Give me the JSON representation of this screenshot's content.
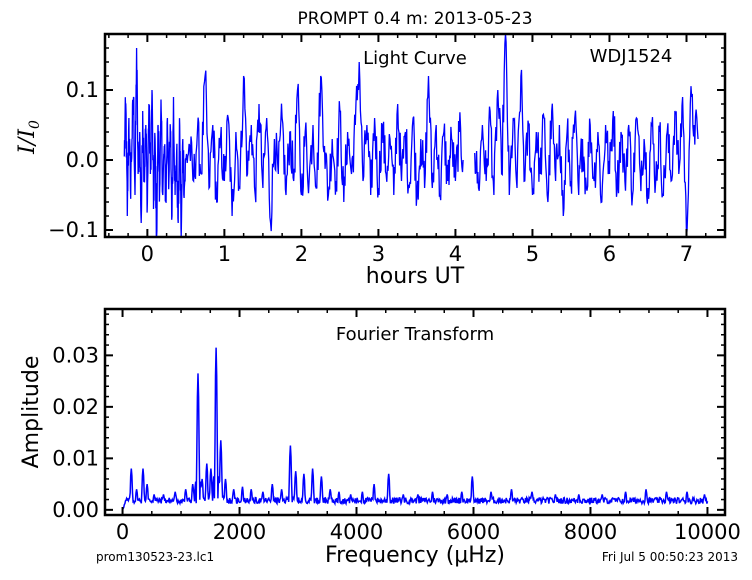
{
  "page": {
    "title": "PROMPT 0.4 m:  2013-05-23",
    "footer_left": "prom130523-23.lc1",
    "footer_right": "Fri Jul  5 00:50:23 2013"
  },
  "chart_data": [
    {
      "type": "line",
      "annotation": "Light Curve",
      "object_label": "WDJ1524",
      "xlabel": "hours UT",
      "ylabel_main": "I",
      "ylabel_den": "I",
      "ylabel_sub": "0",
      "xlim": [
        -0.55,
        7.5
      ],
      "ylim": [
        -0.11,
        0.18
      ],
      "xticks": [
        0,
        1,
        2,
        3,
        4,
        5,
        6,
        7
      ],
      "xtick_labels": [
        "0",
        "1",
        "2",
        "3",
        "4",
        "5",
        "6",
        "7"
      ],
      "yticks": [
        -0.1,
        0.0,
        0.1
      ],
      "ytick_labels": [
        "−0.1",
        "0.0",
        "0.1"
      ],
      "color": "#0000ff",
      "segments": [
        {
          "x_start": -0.3,
          "x_end": 4.1
        },
        {
          "x_start": 4.25,
          "x_end": 7.15
        }
      ],
      "series": [
        {
          "points": [
            [
              -0.3,
              0.005
            ],
            [
              -0.28,
              0.08
            ],
            [
              -0.26,
              -0.08
            ],
            [
              -0.24,
              0.06
            ],
            [
              -0.22,
              -0.04
            ],
            [
              -0.2,
              0.03
            ],
            [
              -0.18,
              0.09
            ],
            [
              -0.16,
              -0.05
            ],
            [
              -0.14,
              0.16
            ],
            [
              -0.12,
              -0.02
            ],
            [
              -0.1,
              0.04
            ],
            [
              -0.08,
              -0.09
            ],
            [
              -0.06,
              0.07
            ],
            [
              -0.04,
              -0.03
            ],
            [
              -0.02,
              0.05
            ],
            [
              0.0,
              -0.06
            ],
            [
              0.02,
              0.08
            ],
            [
              0.04,
              -0.02
            ],
            [
              0.06,
              0.1
            ],
            [
              0.08,
              -0.07
            ],
            [
              0.1,
              0.03
            ],
            [
              0.12,
              -0.11
            ],
            [
              0.14,
              0.05
            ],
            [
              0.16,
              -0.04
            ],
            [
              0.18,
              0.07
            ],
            [
              0.2,
              -0.05
            ],
            [
              0.22,
              0.02
            ],
            [
              0.24,
              -0.06
            ],
            [
              0.26,
              0.06
            ],
            [
              0.28,
              -0.03
            ],
            [
              0.3,
              0.04
            ],
            [
              0.32,
              -0.08
            ],
            [
              0.34,
              0.09
            ],
            [
              0.36,
              -0.05
            ],
            [
              0.38,
              0.01
            ],
            [
              0.4,
              -0.09
            ],
            [
              0.42,
              0.05
            ],
            [
              0.44,
              -0.11
            ],
            [
              0.46,
              0.03
            ],
            [
              0.48,
              -0.04
            ],
            [
              0.5,
              0.0
            ],
            [
              0.55,
              0.02
            ],
            [
              0.6,
              -0.03
            ],
            [
              0.65,
              0.04
            ],
            [
              0.7,
              -0.02
            ],
            [
              0.75,
              0.12
            ],
            [
              0.8,
              -0.04
            ],
            [
              0.85,
              0.05
            ],
            [
              0.9,
              -0.06
            ],
            [
              0.95,
              0.03
            ],
            [
              1.0,
              -0.03
            ],
            [
              1.05,
              0.06
            ],
            [
              1.1,
              -0.08
            ],
            [
              1.15,
              0.04
            ],
            [
              1.2,
              -0.04
            ],
            [
              1.25,
              0.12
            ],
            [
              1.3,
              -0.02
            ],
            [
              1.35,
              0.05
            ],
            [
              1.4,
              -0.05
            ],
            [
              1.45,
              0.08
            ],
            [
              1.5,
              -0.04
            ],
            [
              1.55,
              0.06
            ],
            [
              1.6,
              -0.09
            ],
            [
              1.65,
              0.03
            ],
            [
              1.7,
              -0.02
            ],
            [
              1.75,
              0.06
            ],
            [
              1.8,
              -0.05
            ],
            [
              1.85,
              0.04
            ],
            [
              1.9,
              -0.03
            ],
            [
              1.95,
              0.1
            ],
            [
              2.0,
              -0.05
            ],
            [
              2.05,
              0.04
            ],
            [
              2.1,
              -0.03
            ],
            [
              2.15,
              0.05
            ],
            [
              2.2,
              -0.04
            ],
            [
              2.25,
              0.12
            ],
            [
              2.3,
              0.02
            ],
            [
              2.35,
              -0.05
            ],
            [
              2.4,
              0.03
            ],
            [
              2.45,
              -0.03
            ],
            [
              2.5,
              0.07
            ],
            [
              2.55,
              -0.06
            ],
            [
              2.6,
              0.04
            ],
            [
              2.65,
              -0.02
            ],
            [
              2.7,
              0.05
            ],
            [
              2.75,
              0.14
            ],
            [
              2.8,
              -0.03
            ],
            [
              2.85,
              0.05
            ],
            [
              2.9,
              -0.05
            ],
            [
              2.95,
              0.06
            ],
            [
              3.0,
              -0.04
            ],
            [
              3.05,
              0.05
            ],
            [
              3.1,
              -0.02
            ],
            [
              3.15,
              0.03
            ],
            [
              3.2,
              -0.05
            ],
            [
              3.25,
              0.08
            ],
            [
              3.3,
              -0.03
            ],
            [
              3.35,
              0.04
            ],
            [
              3.4,
              -0.04
            ],
            [
              3.45,
              0.06
            ],
            [
              3.5,
              -0.05
            ],
            [
              3.55,
              0.03
            ],
            [
              3.6,
              -0.04
            ],
            [
              3.65,
              0.12
            ],
            [
              3.7,
              -0.04
            ],
            [
              3.75,
              0.05
            ],
            [
              3.8,
              -0.05
            ],
            [
              3.85,
              0.04
            ],
            [
              3.9,
              -0.03
            ],
            [
              3.95,
              0.03
            ],
            [
              4.0,
              -0.03
            ],
            [
              4.05,
              0.04
            ],
            [
              4.1,
              0.0
            ],
            [
              4.25,
              0.01
            ],
            [
              4.3,
              -0.04
            ],
            [
              4.35,
              0.05
            ],
            [
              4.4,
              -0.03
            ],
            [
              4.45,
              0.07
            ],
            [
              4.5,
              -0.05
            ],
            [
              4.55,
              0.1
            ],
            [
              4.6,
              -0.02
            ],
            [
              4.65,
              0.18
            ],
            [
              4.7,
              -0.05
            ],
            [
              4.75,
              0.06
            ],
            [
              4.8,
              -0.04
            ],
            [
              4.85,
              0.12
            ],
            [
              4.9,
              -0.03
            ],
            [
              4.95,
              0.05
            ],
            [
              5.0,
              -0.05
            ],
            [
              5.05,
              0.04
            ],
            [
              5.1,
              -0.02
            ],
            [
              5.15,
              0.06
            ],
            [
              5.2,
              -0.06
            ],
            [
              5.25,
              0.07
            ],
            [
              5.3,
              -0.03
            ],
            [
              5.35,
              0.05
            ],
            [
              5.4,
              -0.08
            ],
            [
              5.45,
              0.04
            ],
            [
              5.5,
              -0.03
            ],
            [
              5.55,
              0.06
            ],
            [
              5.6,
              -0.05
            ],
            [
              5.65,
              0.03
            ],
            [
              5.7,
              -0.04
            ],
            [
              5.75,
              0.05
            ],
            [
              5.8,
              -0.03
            ],
            [
              5.85,
              0.04
            ],
            [
              5.9,
              -0.06
            ],
            [
              5.95,
              0.05
            ],
            [
              6.0,
              -0.02
            ],
            [
              6.05,
              0.07
            ],
            [
              6.1,
              -0.04
            ],
            [
              6.15,
              0.04
            ],
            [
              6.2,
              -0.03
            ],
            [
              6.25,
              0.05
            ],
            [
              6.3,
              -0.05
            ],
            [
              6.35,
              0.06
            ],
            [
              6.4,
              -0.02
            ],
            [
              6.45,
              0.03
            ],
            [
              6.5,
              -0.04
            ],
            [
              6.55,
              0.05
            ],
            [
              6.6,
              -0.03
            ],
            [
              6.65,
              0.04
            ],
            [
              6.7,
              -0.05
            ],
            [
              6.75,
              0.04
            ],
            [
              6.8,
              -0.03
            ],
            [
              6.85,
              0.07
            ],
            [
              6.9,
              -0.02
            ],
            [
              6.95,
              0.09
            ],
            [
              7.0,
              -0.11
            ],
            [
              7.05,
              0.08
            ],
            [
              7.1,
              0.05
            ],
            [
              7.15,
              0.03
            ]
          ]
        }
      ]
    },
    {
      "type": "line",
      "annotation": "Fourier Transform",
      "xlabel": "Frequency (μHz)",
      "ylabel": "Amplitude",
      "xlim": [
        -300,
        10300
      ],
      "ylim": [
        -0.001,
        0.039
      ],
      "xticks": [
        0,
        2000,
        4000,
        6000,
        8000,
        10000
      ],
      "xtick_labels": [
        "0",
        "2000",
        "4000",
        "6000",
        "8000",
        "10000"
      ],
      "yticks": [
        0.0,
        0.01,
        0.02,
        0.03
      ],
      "ytick_labels": [
        "0.00",
        "0.01",
        "0.02",
        "0.03"
      ],
      "color": "#0000ff",
      "x_start": 0,
      "x_end": 10000,
      "peaks": [
        {
          "x": 150,
          "y": 0.008
        },
        {
          "x": 240,
          "y": 0.004
        },
        {
          "x": 350,
          "y": 0.008
        },
        {
          "x": 420,
          "y": 0.005
        },
        {
          "x": 540,
          "y": 0.003
        },
        {
          "x": 700,
          "y": 0.003
        },
        {
          "x": 900,
          "y": 0.0035
        },
        {
          "x": 1080,
          "y": 0.004
        },
        {
          "x": 1200,
          "y": 0.005
        },
        {
          "x": 1290,
          "y": 0.0265
        },
        {
          "x": 1360,
          "y": 0.006
        },
        {
          "x": 1440,
          "y": 0.009
        },
        {
          "x": 1510,
          "y": 0.008
        },
        {
          "x": 1600,
          "y": 0.0315
        },
        {
          "x": 1680,
          "y": 0.0135
        },
        {
          "x": 1760,
          "y": 0.006
        },
        {
          "x": 1900,
          "y": 0.004
        },
        {
          "x": 2050,
          "y": 0.0045
        },
        {
          "x": 2200,
          "y": 0.004
        },
        {
          "x": 2400,
          "y": 0.0035
        },
        {
          "x": 2560,
          "y": 0.005
        },
        {
          "x": 2720,
          "y": 0.004
        },
        {
          "x": 2870,
          "y": 0.0125
        },
        {
          "x": 2960,
          "y": 0.0075
        },
        {
          "x": 3100,
          "y": 0.007
        },
        {
          "x": 3250,
          "y": 0.008
        },
        {
          "x": 3400,
          "y": 0.0065
        },
        {
          "x": 3550,
          "y": 0.004
        },
        {
          "x": 3700,
          "y": 0.0035
        },
        {
          "x": 3900,
          "y": 0.003
        },
        {
          "x": 4100,
          "y": 0.0035
        },
        {
          "x": 4300,
          "y": 0.005
        },
        {
          "x": 4550,
          "y": 0.007
        },
        {
          "x": 4800,
          "y": 0.003
        },
        {
          "x": 5050,
          "y": 0.003
        },
        {
          "x": 5300,
          "y": 0.0035
        },
        {
          "x": 5550,
          "y": 0.003
        },
        {
          "x": 5800,
          "y": 0.0035
        },
        {
          "x": 5980,
          "y": 0.0065
        },
        {
          "x": 6300,
          "y": 0.0035
        },
        {
          "x": 6650,
          "y": 0.004
        },
        {
          "x": 7000,
          "y": 0.0035
        },
        {
          "x": 7400,
          "y": 0.003
        },
        {
          "x": 7800,
          "y": 0.003
        },
        {
          "x": 8200,
          "y": 0.003
        },
        {
          "x": 8600,
          "y": 0.0035
        },
        {
          "x": 8950,
          "y": 0.004
        },
        {
          "x": 9300,
          "y": 0.0035
        },
        {
          "x": 9650,
          "y": 0.0035
        },
        {
          "x": 9950,
          "y": 0.003
        }
      ]
    }
  ]
}
